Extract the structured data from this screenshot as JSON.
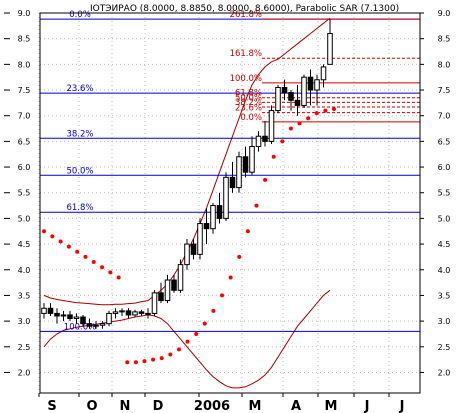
{
  "chart_data": {
    "type": "candlestick",
    "title": "IOTЭИРАО (8.0000, 8.8850, 8.0000, 8.6000), Parabolic SAR (7.1300)",
    "ylim": [
      1.6,
      9.0
    ],
    "y_ticks": [
      2.0,
      2.5,
      3.0,
      3.5,
      4.0,
      4.5,
      5.0,
      5.5,
      6.0,
      6.5,
      7.0,
      7.5,
      8.0,
      8.5,
      9.0
    ],
    "y_tick_labels": [
      "2.0",
      "2.5",
      "3.0",
      "3.5",
      "4.0",
      "4.5",
      "5.0",
      "5.5",
      "6.0",
      "6.5",
      "7.0",
      "7.5",
      "8.0",
      "8.5",
      "9.0"
    ],
    "x_ticks": [
      "S",
      "O",
      "N",
      "D",
      "2006",
      "M",
      "A",
      "M",
      "J",
      "J"
    ],
    "grid": true,
    "candles": [
      {
        "o": 3.15,
        "h": 3.35,
        "l": 3.05,
        "c": 3.25
      },
      {
        "o": 3.25,
        "h": 3.35,
        "l": 3.1,
        "c": 3.15
      },
      {
        "o": 3.15,
        "h": 3.25,
        "l": 2.95,
        "c": 3.1
      },
      {
        "o": 3.1,
        "h": 3.2,
        "l": 3.0,
        "c": 3.12
      },
      {
        "o": 3.12,
        "h": 3.2,
        "l": 3.0,
        "c": 3.05
      },
      {
        "o": 3.05,
        "h": 3.15,
        "l": 2.95,
        "c": 3.08
      },
      {
        "o": 3.08,
        "h": 3.12,
        "l": 2.9,
        "c": 2.95
      },
      {
        "o": 2.95,
        "h": 3.05,
        "l": 2.85,
        "c": 2.9
      },
      {
        "o": 2.9,
        "h": 3.0,
        "l": 2.85,
        "c": 2.92
      },
      {
        "o": 2.92,
        "h": 3.0,
        "l": 2.85,
        "c": 2.95
      },
      {
        "o": 2.95,
        "h": 3.2,
        "l": 2.9,
        "c": 3.15
      },
      {
        "o": 3.15,
        "h": 3.25,
        "l": 3.05,
        "c": 3.18
      },
      {
        "o": 3.18,
        "h": 3.25,
        "l": 3.1,
        "c": 3.2
      },
      {
        "o": 3.2,
        "h": 3.25,
        "l": 3.05,
        "c": 3.12
      },
      {
        "o": 3.12,
        "h": 3.22,
        "l": 3.08,
        "c": 3.18
      },
      {
        "o": 3.18,
        "h": 3.22,
        "l": 3.1,
        "c": 3.15
      },
      {
        "o": 3.15,
        "h": 3.25,
        "l": 3.05,
        "c": 3.15
      },
      {
        "o": 3.15,
        "h": 3.6,
        "l": 3.1,
        "c": 3.55
      },
      {
        "o": 3.55,
        "h": 3.75,
        "l": 3.35,
        "c": 3.4
      },
      {
        "o": 3.4,
        "h": 3.9,
        "l": 3.35,
        "c": 3.8
      },
      {
        "o": 3.8,
        "h": 3.9,
        "l": 3.55,
        "c": 3.6
      },
      {
        "o": 3.6,
        "h": 4.2,
        "l": 3.55,
        "c": 4.1
      },
      {
        "o": 4.1,
        "h": 4.6,
        "l": 4.0,
        "c": 4.5
      },
      {
        "o": 4.5,
        "h": 4.6,
        "l": 4.2,
        "c": 4.3
      },
      {
        "o": 4.3,
        "h": 5.0,
        "l": 4.2,
        "c": 4.9
      },
      {
        "o": 4.9,
        "h": 5.2,
        "l": 4.5,
        "c": 4.8
      },
      {
        "o": 4.8,
        "h": 5.3,
        "l": 4.7,
        "c": 5.25
      },
      {
        "o": 5.25,
        "h": 5.5,
        "l": 4.9,
        "c": 5.0
      },
      {
        "o": 5.0,
        "h": 5.9,
        "l": 4.95,
        "c": 5.8
      },
      {
        "o": 5.8,
        "h": 6.1,
        "l": 5.5,
        "c": 5.6
      },
      {
        "o": 5.6,
        "h": 6.3,
        "l": 5.5,
        "c": 6.2
      },
      {
        "o": 6.2,
        "h": 6.4,
        "l": 5.8,
        "c": 5.9
      },
      {
        "o": 5.9,
        "h": 6.6,
        "l": 5.85,
        "c": 6.4
      },
      {
        "o": 6.4,
        "h": 6.7,
        "l": 6.3,
        "c": 6.6
      },
      {
        "o": 6.6,
        "h": 6.9,
        "l": 6.4,
        "c": 6.5
      },
      {
        "o": 6.5,
        "h": 7.2,
        "l": 6.45,
        "c": 7.1
      },
      {
        "o": 7.1,
        "h": 7.6,
        "l": 7.05,
        "c": 7.55
      },
      {
        "o": 7.55,
        "h": 7.7,
        "l": 7.3,
        "c": 7.45
      },
      {
        "o": 7.45,
        "h": 7.5,
        "l": 7.1,
        "c": 7.3
      },
      {
        "o": 7.3,
        "h": 7.6,
        "l": 7.0,
        "c": 7.2
      },
      {
        "o": 7.2,
        "h": 7.8,
        "l": 7.15,
        "c": 7.75
      },
      {
        "o": 7.75,
        "h": 7.9,
        "l": 7.2,
        "c": 7.5
      },
      {
        "o": 7.5,
        "h": 7.8,
        "l": 7.2,
        "c": 7.7
      },
      {
        "o": 7.7,
        "h": 8.0,
        "l": 7.55,
        "c": 7.95
      },
      {
        "o": 8.0,
        "h": 8.885,
        "l": 8.0,
        "c": 8.6
      }
    ],
    "sar": [
      4.75,
      4.65,
      4.55,
      4.45,
      4.35,
      4.25,
      4.15,
      4.05,
      3.95,
      3.85,
      2.2,
      2.2,
      2.22,
      2.25,
      2.28,
      2.35,
      2.45,
      2.6,
      2.75,
      2.95,
      3.2,
      3.5,
      3.85,
      4.25,
      4.75,
      5.25,
      5.75,
      6.2,
      6.5,
      6.75,
      6.85,
      6.95,
      7.05,
      7.1,
      7.13
    ],
    "sar_start_index": 0,
    "bands_upper": [
      3.5,
      3.45,
      3.42,
      3.4,
      3.38,
      3.36,
      3.35,
      3.34,
      3.33,
      3.32,
      3.32,
      3.33,
      3.33,
      3.34,
      3.35,
      3.38,
      3.4,
      3.5,
      3.6,
      3.72,
      3.9,
      4.1,
      4.35,
      4.6,
      4.9,
      5.2,
      5.55,
      5.9,
      6.25,
      6.6,
      6.95,
      7.3,
      7.6,
      7.8,
      7.95,
      8.05,
      8.1,
      8.2,
      8.3,
      8.4,
      8.5,
      8.6,
      8.7,
      8.8,
      8.9
    ],
    "bands_lower": [
      2.5,
      2.65,
      2.75,
      2.82,
      2.85,
      2.88,
      2.9,
      2.92,
      2.94,
      2.96,
      2.98,
      3.0,
      3.02,
      3.05,
      3.08,
      3.1,
      3.12,
      3.1,
      3.05,
      2.95,
      2.8,
      2.65,
      2.5,
      2.35,
      2.2,
      2.05,
      1.92,
      1.82,
      1.74,
      1.7,
      1.7,
      1.72,
      1.78,
      1.85,
      1.95,
      2.1,
      2.3,
      2.5,
      2.7,
      2.9,
      3.05,
      3.2,
      3.35,
      3.5,
      3.6
    ],
    "bands_lower_start_index": 0,
    "fib_left": [
      {
        "label": "0.0%",
        "y": 8.88
      },
      {
        "label": "23.6%",
        "y": 7.44
      },
      {
        "label": "38.2%",
        "y": 6.56
      },
      {
        "label": "50.0%",
        "y": 5.84
      },
      {
        "label": "61.8%",
        "y": 5.12
      },
      {
        "label": "100.0%",
        "y": 2.8
      }
    ],
    "fib_right": [
      {
        "label": "261.8%",
        "y": 8.88
      },
      {
        "label": "161.8%",
        "y": 8.12
      },
      {
        "label": "100.0%",
        "y": 7.64
      },
      {
        "label": "61.8%",
        "y": 7.35
      },
      {
        "label": "50.0%",
        "y": 7.26
      },
      {
        "label": "38.2%",
        "y": 7.17
      },
      {
        "label": "23.6%",
        "y": 7.06
      },
      {
        "label": "0.0%",
        "y": 6.88
      }
    ],
    "colors": {
      "candle_up": "#ffffff",
      "candle_down": "#000000",
      "candle_outline": "#000000",
      "sar": "#ff0000",
      "bands": "#aa0000",
      "fib_left": "#0000cc",
      "fib_right": "#cc0000",
      "grid": "#bbbbbb"
    }
  }
}
